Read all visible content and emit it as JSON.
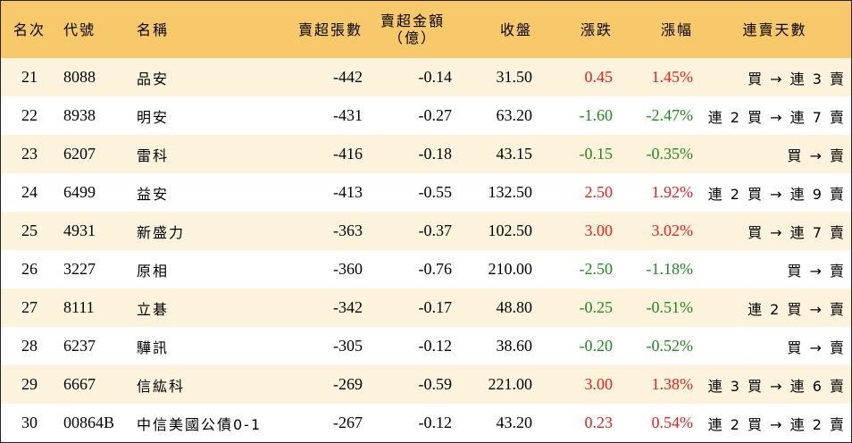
{
  "headers": {
    "rank": "名次",
    "code": "代號",
    "name": "名稱",
    "sell_lots": "賣超張數",
    "sell_amount_line1": "賣超金額",
    "sell_amount_line2": "（億）",
    "close": "收盤",
    "change": "漲跌",
    "pct": "漲幅",
    "streak": "連賣天數"
  },
  "colors": {
    "header_bg": "#f7c96a",
    "stripe_bg": "#fdf3dc",
    "up": "#e8211b",
    "down": "#1e8a1e"
  },
  "rows": [
    {
      "rank": "21",
      "code": "8088",
      "name": "品安",
      "sell_lots": "-442",
      "sell_amount": "-0.14",
      "close": "31.50",
      "change": "0.45",
      "pct": "1.45%",
      "dir": "up",
      "streak": "買 → 連 3 賣"
    },
    {
      "rank": "22",
      "code": "8938",
      "name": "明安",
      "sell_lots": "-431",
      "sell_amount": "-0.27",
      "close": "63.20",
      "change": "-1.60",
      "pct": "-2.47%",
      "dir": "down",
      "streak": "連 2 買 → 連 7 賣"
    },
    {
      "rank": "23",
      "code": "6207",
      "name": "雷科",
      "sell_lots": "-416",
      "sell_amount": "-0.18",
      "close": "43.15",
      "change": "-0.15",
      "pct": "-0.35%",
      "dir": "down",
      "streak": "買 → 賣"
    },
    {
      "rank": "24",
      "code": "6499",
      "name": "益安",
      "sell_lots": "-413",
      "sell_amount": "-0.55",
      "close": "132.50",
      "change": "2.50",
      "pct": "1.92%",
      "dir": "up",
      "streak": "連 2 買 → 連 9 賣"
    },
    {
      "rank": "25",
      "code": "4931",
      "name": "新盛力",
      "sell_lots": "-363",
      "sell_amount": "-0.37",
      "close": "102.50",
      "change": "3.00",
      "pct": "3.02%",
      "dir": "up",
      "streak": "買 → 連 7 賣"
    },
    {
      "rank": "26",
      "code": "3227",
      "name": "原相",
      "sell_lots": "-360",
      "sell_amount": "-0.76",
      "close": "210.00",
      "change": "-2.50",
      "pct": "-1.18%",
      "dir": "down",
      "streak": "買 → 賣"
    },
    {
      "rank": "27",
      "code": "8111",
      "name": "立碁",
      "sell_lots": "-342",
      "sell_amount": "-0.17",
      "close": "48.80",
      "change": "-0.25",
      "pct": "-0.51%",
      "dir": "down",
      "streak": "連 2 買 → 賣"
    },
    {
      "rank": "28",
      "code": "6237",
      "name": "驊訊",
      "sell_lots": "-305",
      "sell_amount": "-0.12",
      "close": "38.60",
      "change": "-0.20",
      "pct": "-0.52%",
      "dir": "down",
      "streak": "買 → 賣"
    },
    {
      "rank": "29",
      "code": "6667",
      "name": "信紘科",
      "sell_lots": "-269",
      "sell_amount": "-0.59",
      "close": "221.00",
      "change": "3.00",
      "pct": "1.38%",
      "dir": "up",
      "streak": "連 3 買 → 連 6 賣"
    },
    {
      "rank": "30",
      "code": "00864B",
      "name": "中信美國公債0-1",
      "sell_lots": "-267",
      "sell_amount": "-0.12",
      "close": "43.20",
      "change": "0.23",
      "pct": "0.54%",
      "dir": "up",
      "streak": "連 2 買 → 連 2 賣"
    }
  ]
}
